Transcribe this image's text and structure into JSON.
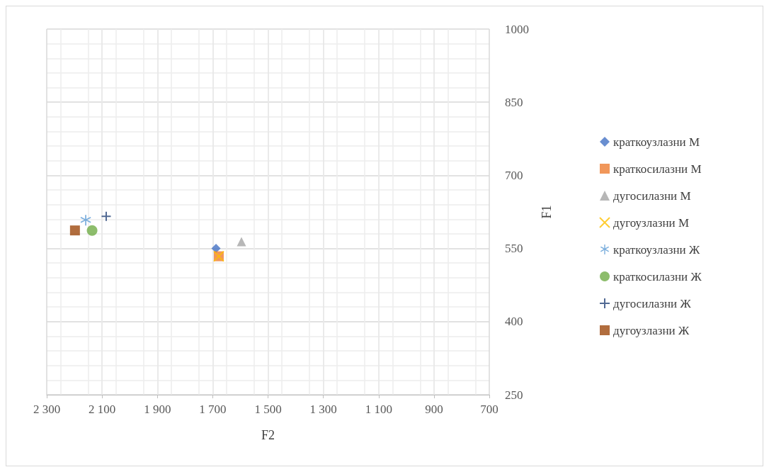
{
  "chart_data": {
    "type": "scatter",
    "xlabel": "F2",
    "ylabel": "F1",
    "xlim": [
      2300,
      700
    ],
    "ylim": [
      250,
      1000
    ],
    "xticks": [
      {
        "value": 2300,
        "label": "2 300"
      },
      {
        "value": 2100,
        "label": "2 100"
      },
      {
        "value": 1900,
        "label": "1 900"
      },
      {
        "value": 1700,
        "label": "1 700"
      },
      {
        "value": 1500,
        "label": "1 500"
      },
      {
        "value": 1300,
        "label": "1 300"
      },
      {
        "value": 1100,
        "label": "1 100"
      },
      900,
      700
    ],
    "yticks": [
      250,
      400,
      550,
      700,
      850,
      1000
    ],
    "grid": true,
    "legend": "right",
    "series": [
      {
        "name": "краткоузлазни М",
        "color": "#4472c4",
        "marker": "diamond",
        "x": [
          1688
        ],
        "values": [
          550
        ]
      },
      {
        "name": "краткосилазни М",
        "color": "#ed7d31",
        "marker": "square",
        "x": [
          1678
        ],
        "values": [
          534
        ]
      },
      {
        "name": "дугосилазни М",
        "color": "#a5a5a5",
        "marker": "triangle",
        "x": [
          1596
        ],
        "values": [
          564
        ]
      },
      {
        "name": "дугоузлазни М",
        "color": "#ffc000",
        "marker": "x",
        "x": [
          1678
        ],
        "values": [
          534
        ]
      },
      {
        "name": "краткоузлазни Ж",
        "color": "#5b9bd5",
        "marker": "star",
        "x": [
          2159
        ],
        "values": [
          608
        ]
      },
      {
        "name": "краткосилазни Ж",
        "color": "#70ad47",
        "marker": "circle",
        "x": [
          2136
        ],
        "values": [
          587
        ]
      },
      {
        "name": "дугосилазни Ж",
        "color": "#264478",
        "marker": "cross",
        "x": [
          2085
        ],
        "values": [
          616
        ]
      },
      {
        "name": "дугоузлазни Ж",
        "color": "#9e480e",
        "marker": "square",
        "x": [
          2198
        ],
        "values": [
          587
        ]
      }
    ]
  }
}
